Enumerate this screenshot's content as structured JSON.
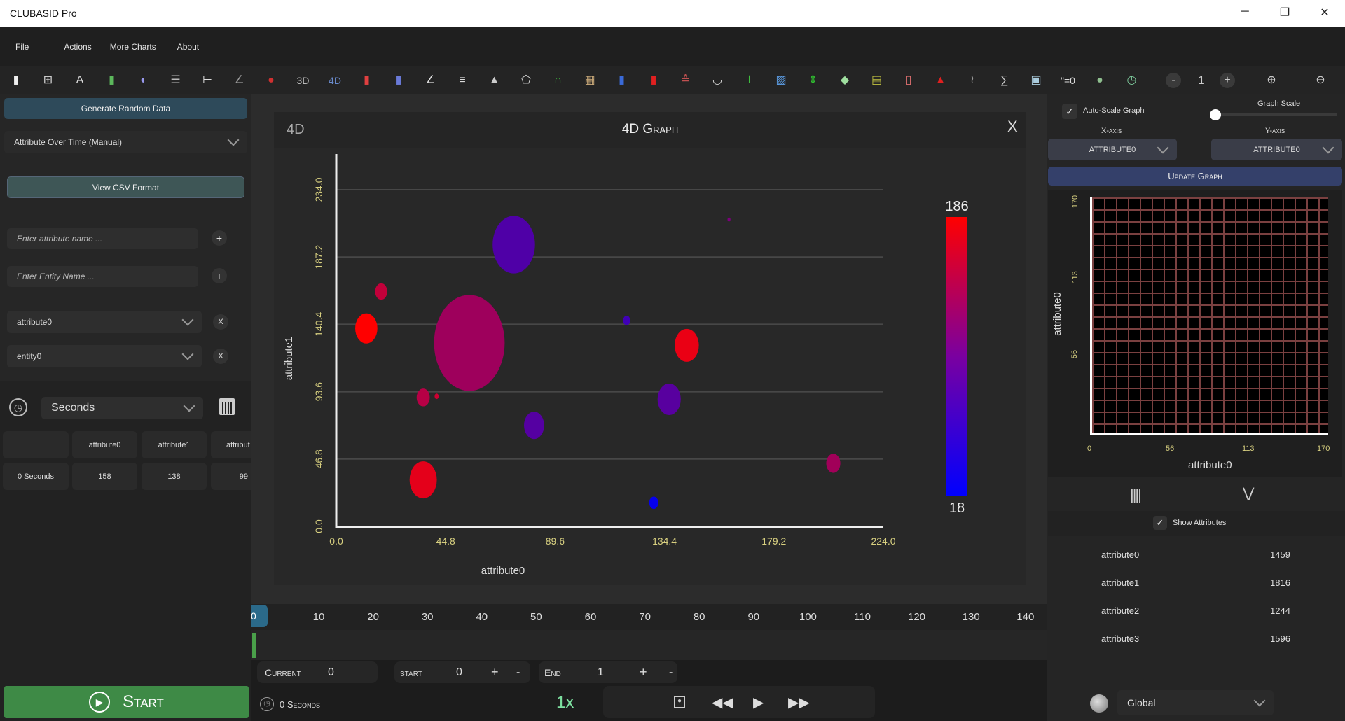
{
  "app": {
    "title": "CLUBASID Pro",
    "minimize": "─",
    "restore": "❐",
    "close": "✕"
  },
  "menu": [
    "File",
    "Actions",
    "More Charts",
    "About"
  ],
  "toolbar": {
    "icons": [
      {
        "name": "new-file-icon",
        "glyph": "▮",
        "color": "#eeeeee"
      },
      {
        "name": "grid-icon",
        "glyph": "⊞",
        "color": "#dddddd"
      },
      {
        "name": "text-attribute-icon",
        "glyph": "A",
        "color": "#dddddd"
      },
      {
        "name": "bar-chart-icon",
        "glyph": "▮",
        "color": "#5cb85c"
      },
      {
        "name": "pie-icon",
        "glyph": "◐",
        "color": "#9999ee"
      },
      {
        "name": "horizontal-bar-icon",
        "glyph": "☰",
        "color": "#bbbbbb"
      },
      {
        "name": "axis-arrow-icon",
        "glyph": "⊢",
        "color": "#dddddd"
      },
      {
        "name": "line-chart-icon",
        "glyph": "∠",
        "color": "#999999"
      },
      {
        "name": "venn-icon",
        "glyph": "●",
        "color": "#d03030"
      },
      {
        "name": "3d-icon",
        "glyph": "3D",
        "color": "#bbbbbb"
      },
      {
        "name": "4d-icon",
        "glyph": "4D",
        "color": "#6a8acc"
      },
      {
        "name": "stacked-bar-icon",
        "glyph": "▮",
        "color": "#e04040"
      },
      {
        "name": "grouped-bar-icon",
        "glyph": "▮",
        "color": "#6a7ad8"
      },
      {
        "name": "axis-line-icon",
        "glyph": "∠",
        "color": "#dddddd"
      },
      {
        "name": "gantt-icon",
        "glyph": "≡",
        "color": "#dddddd"
      },
      {
        "name": "histogram-icon",
        "glyph": "▲",
        "color": "#cccccc"
      },
      {
        "name": "polygon-icon",
        "glyph": "⬠",
        "color": "#dddddd"
      },
      {
        "name": "arc-icon",
        "glyph": "∩",
        "color": "#40c040"
      },
      {
        "name": "heatmap-icon",
        "glyph": "▦",
        "color": "#c8a878"
      },
      {
        "name": "column-icon",
        "glyph": "▮",
        "color": "#3a6ad8"
      },
      {
        "name": "candlestick-icon",
        "glyph": "▮",
        "color": "#e02020"
      },
      {
        "name": "pyramid-icon",
        "glyph": "≙",
        "color": "#c05050"
      },
      {
        "name": "donut-icon",
        "glyph": "◡",
        "color": "#dddddd"
      },
      {
        "name": "error-bar-icon",
        "glyph": "⊥",
        "color": "#40c040"
      },
      {
        "name": "area-map-icon",
        "glyph": "▨",
        "color": "#5a9ae0"
      },
      {
        "name": "up-down-icon",
        "glyph": "⇕",
        "color": "#30c030"
      },
      {
        "name": "africa-map-icon",
        "glyph": "◆",
        "color": "#a0e0a0"
      },
      {
        "name": "timeline-icon",
        "glyph": "▤",
        "color": "#c0c040"
      },
      {
        "name": "signal-doc-icon",
        "glyph": "▯",
        "color": "#e07070"
      },
      {
        "name": "pdf-icon",
        "glyph": "▲",
        "color": "#e02020"
      },
      {
        "name": "wave-icon",
        "glyph": "≀",
        "color": "#999999"
      },
      {
        "name": "sum-icon",
        "glyph": "∑",
        "color": "#cccccc"
      },
      {
        "name": "image-icon",
        "glyph": "▣",
        "color": "#aaccdd"
      },
      {
        "name": "equals-zero-icon",
        "glyph": "\"=0",
        "color": "#dddddd"
      },
      {
        "name": "color-sphere-icon",
        "glyph": "●",
        "color": "#8fbf8f"
      },
      {
        "name": "clock-icon",
        "glyph": "◷",
        "color": "#80d0a0"
      }
    ],
    "zoom_minus": "-",
    "zoom_level": "1",
    "zoom_plus": "+",
    "zoom_in": "⊕",
    "zoom_out": "⊖"
  },
  "left": {
    "generate": "Generate Random Data",
    "mode": "Attribute Over Time (Manual)",
    "view_csv": "View CSV Format",
    "attr_placeholder": "Enter attribute name ...",
    "entity_placeholder": "Enter Entity Name ...",
    "add": "+",
    "attribute_select": "attribute0",
    "entity_select": "entity0",
    "remove": "X",
    "time_unit": "Seconds",
    "table": {
      "headers": [
        "",
        "attribute0",
        "attribute1",
        "attribut"
      ],
      "rows": [
        [
          "0 Seconds",
          "158",
          "138",
          "99"
        ]
      ]
    },
    "start": "Start"
  },
  "chart_panel": {
    "badge": "4D",
    "title": "4D Graph",
    "close": "X"
  },
  "chart_data": {
    "type": "scatter",
    "title": "4D Graph",
    "xlabel": "attribute0",
    "ylabel": "attribute1",
    "xlim": [
      0,
      224
    ],
    "ylim": [
      0,
      234
    ],
    "xticks": [
      "0.0",
      "44.8",
      "89.6",
      "134.4",
      "179.2",
      "224.0"
    ],
    "yticks": [
      "0.0",
      "46.8",
      "93.6",
      "140.4",
      "187.2",
      "234.0"
    ],
    "grid": "horizontal",
    "colorbar": {
      "min": "18",
      "max": "186",
      "low_color": "#0000ff",
      "high_color": "#ff0000"
    },
    "points": [
      {
        "x": 72.7,
        "y": 195.8,
        "size": 42,
        "color_value": 70
      },
      {
        "x": 18.4,
        "y": 163.2,
        "size": 12,
        "color_value": 146
      },
      {
        "x": 12.3,
        "y": 137.6,
        "size": 22,
        "color_value": 186
      },
      {
        "x": 54.5,
        "y": 127.5,
        "size": 70,
        "color_value": 122
      },
      {
        "x": 118.9,
        "y": 143.1,
        "size": 7,
        "color_value": 60
      },
      {
        "x": 143.5,
        "y": 125.8,
        "size": 24,
        "color_value": 172
      },
      {
        "x": 160.8,
        "y": 213.3,
        "size": 3,
        "color_value": 100
      },
      {
        "x": 35.6,
        "y": 89.6,
        "size": 13,
        "color_value": 138
      },
      {
        "x": 41.1,
        "y": 90.4,
        "size": 4,
        "color_value": 152
      },
      {
        "x": 136.3,
        "y": 88.3,
        "size": 23,
        "color_value": 76
      },
      {
        "x": 81.0,
        "y": 70.2,
        "size": 20,
        "color_value": 74
      },
      {
        "x": 203.5,
        "y": 43.8,
        "size": 14,
        "color_value": 124
      },
      {
        "x": 35.6,
        "y": 32.3,
        "size": 27,
        "color_value": 168
      },
      {
        "x": 130.0,
        "y": 16.4,
        "size": 9,
        "color_value": 22
      }
    ]
  },
  "right": {
    "auto_scale": "Auto-Scale Graph",
    "auto_scale_checked": true,
    "graph_scale": "Graph Scale",
    "graph_scale_value": 0,
    "x_axis_label": "X-axis",
    "y_axis_label": "Y-axis",
    "x_axis": "attribute0",
    "y_axis": "attribute0",
    "update": "Update Graph",
    "mini_chart": {
      "xlabel": "attribute0",
      "ylabel": "attribute0",
      "xticks": [
        "0",
        "56",
        "113",
        "170"
      ],
      "yticks": [
        "56",
        "113",
        "170"
      ]
    },
    "show_attributes": "Show Attributes",
    "attributes": [
      {
        "name": "attribute0",
        "value": "1459"
      },
      {
        "name": "attribute1",
        "value": "1816"
      },
      {
        "name": "attribute2",
        "value": "1244"
      },
      {
        "name": "attribute3",
        "value": "1596"
      }
    ],
    "scope": "Global"
  },
  "timeline": {
    "handle": "0",
    "ticks": [
      "10",
      "20",
      "30",
      "40",
      "50",
      "60",
      "70",
      "80",
      "90",
      "100",
      "110",
      "120",
      "130",
      "140"
    ]
  },
  "controls": {
    "current_label": "Current",
    "current": "0",
    "start_label": "start",
    "start": "0",
    "end_label": "End",
    "end": "1",
    "plus": "+",
    "minus": "-"
  },
  "status": {
    "time": "0 Seconds",
    "speed": "1x"
  }
}
